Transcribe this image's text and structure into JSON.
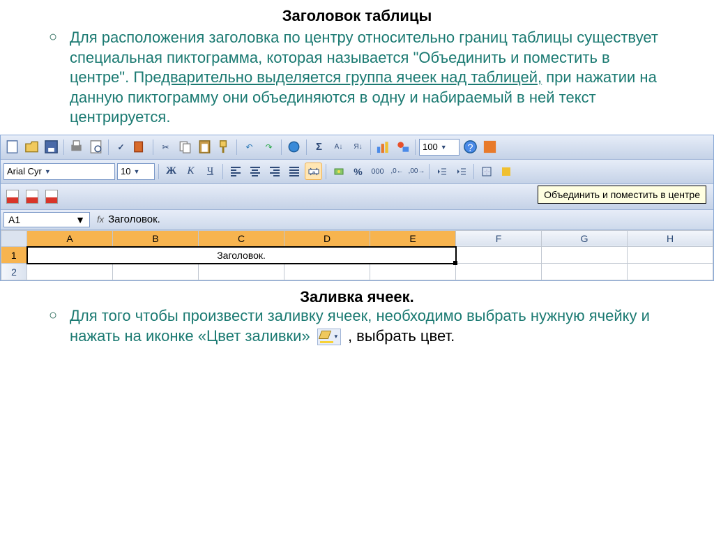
{
  "section1": {
    "title": "Заголовок таблицы",
    "paragraph_html": "Для расположения заголовка по центру относительно границ таблицы существует специальная пиктограмма, которая называется \"Объединить и поместить в центре\". Пре<u>дварительно выделяется группа ячеек над таблицей,</u> при нажатии на данную пиктограмму они объединяются в одну и набираемый в ней текст центрируется."
  },
  "excel": {
    "font_name": "Arial Cyr",
    "font_size": "10",
    "bold": "Ж",
    "italic": "К",
    "underline": "Ч",
    "percent": "%",
    "thousands": "000",
    "tooltip": "Объединить и поместить в центре",
    "cell_ref": "A1",
    "fx_label": "fx",
    "formula_value": "Заголовок.",
    "columns": [
      "A",
      "B",
      "C",
      "D",
      "E",
      "F",
      "G",
      "H"
    ],
    "selected_cols": [
      "A",
      "B",
      "C",
      "D",
      "E"
    ],
    "rows": [
      "1",
      "2"
    ],
    "merged_text": "Заголовок.",
    "colors": {
      "toolbar_bg": "#c5d2e7",
      "selected_header": "#f7b44f",
      "grid_border": "#c0c7d1",
      "text_teal": "#1b7a72"
    }
  },
  "section2": {
    "title": "Заливка ячеек.",
    "paragraph": "Для того чтобы произвести заливку ячеек, необходимо выбрать нужную ячейку и нажать на иконке «Цвет заливки»",
    "tail": " , выбрать цвет."
  }
}
